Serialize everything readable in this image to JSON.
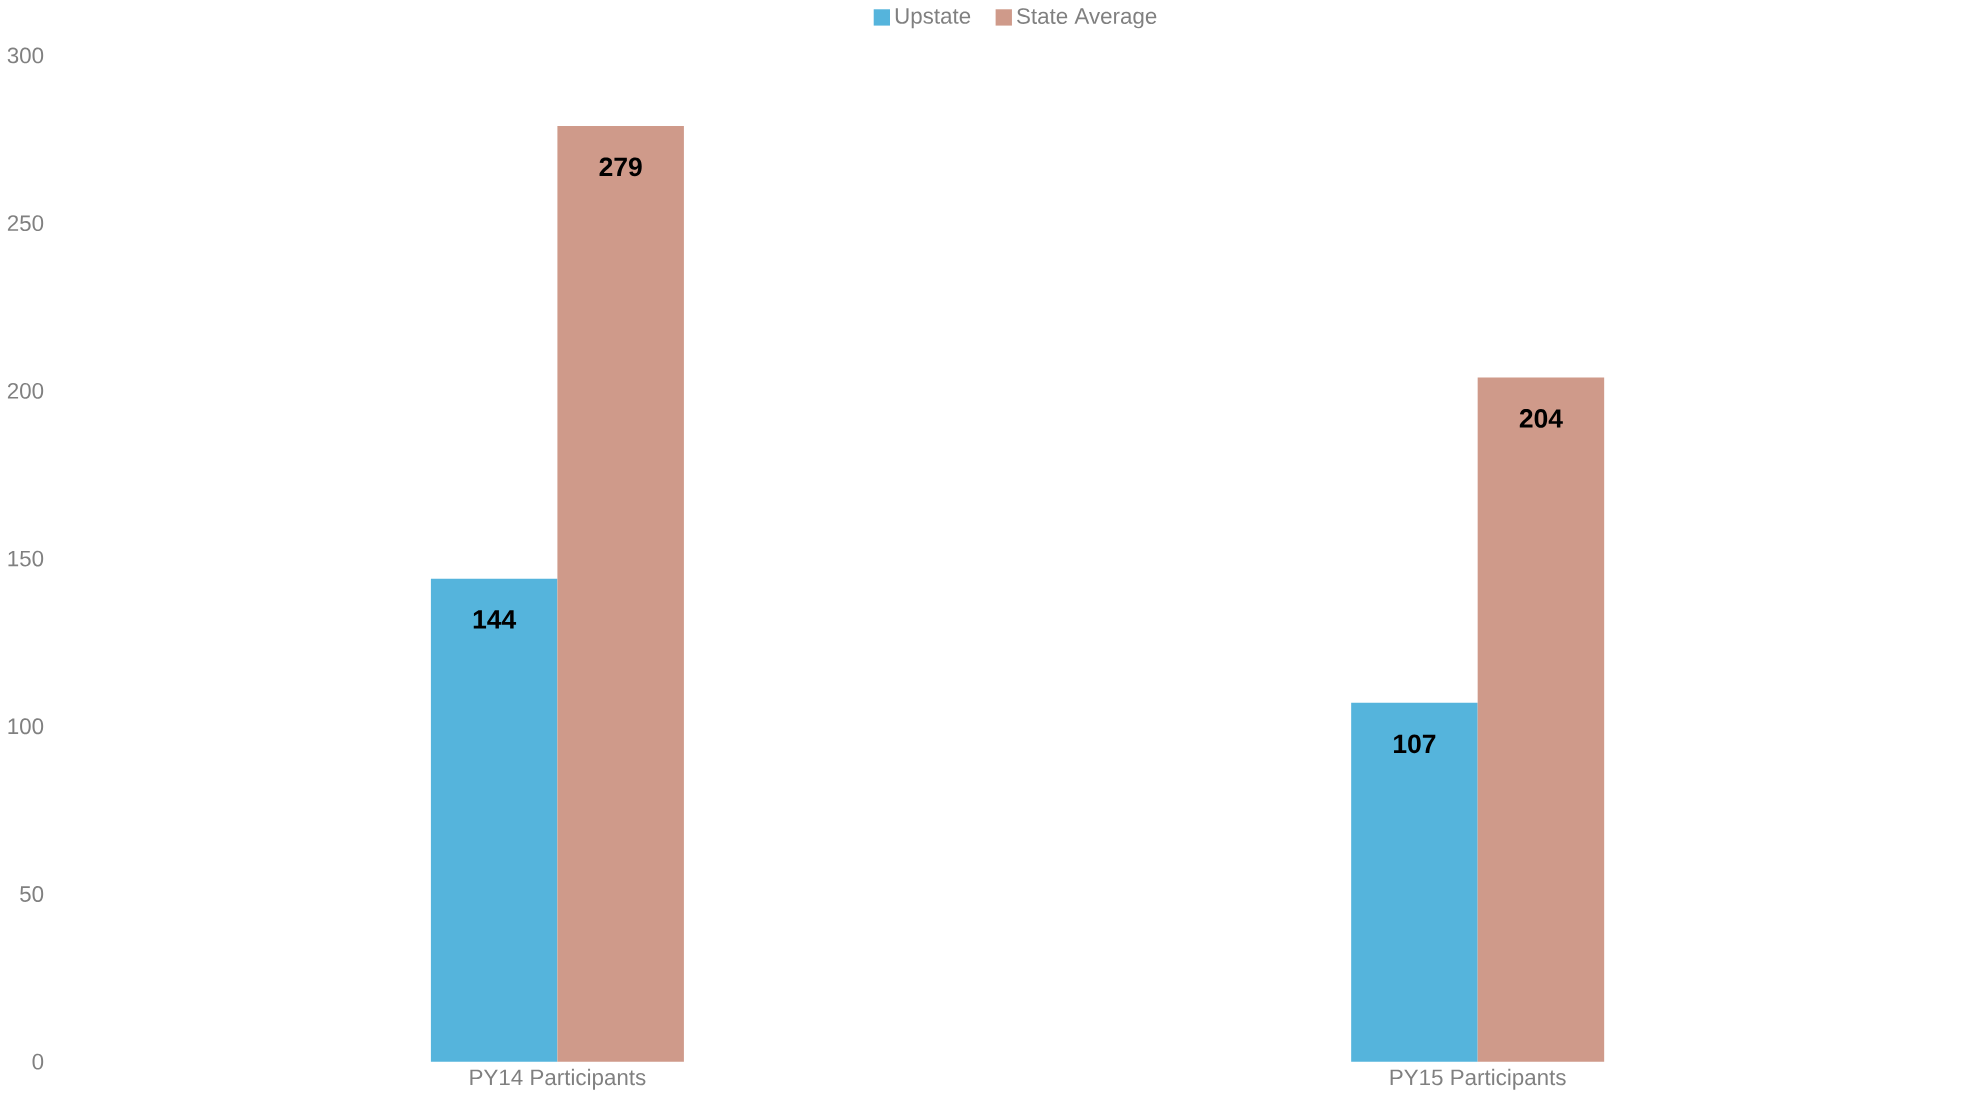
{
  "chart_data": {
    "type": "bar",
    "categories": [
      "PY14 Participants",
      "PY15 Participants"
    ],
    "series": [
      {
        "name": "Upstate",
        "color": "#55b4dc",
        "values": [
          144,
          107
        ]
      },
      {
        "name": "State Average",
        "color": "#cf9a8a",
        "values": [
          279,
          204
        ]
      }
    ],
    "ylim": [
      0,
      300
    ],
    "yticks": [
      0,
      50,
      100,
      150,
      200,
      250,
      300
    ],
    "data_labels": true,
    "legend": "top",
    "grid": false
  }
}
